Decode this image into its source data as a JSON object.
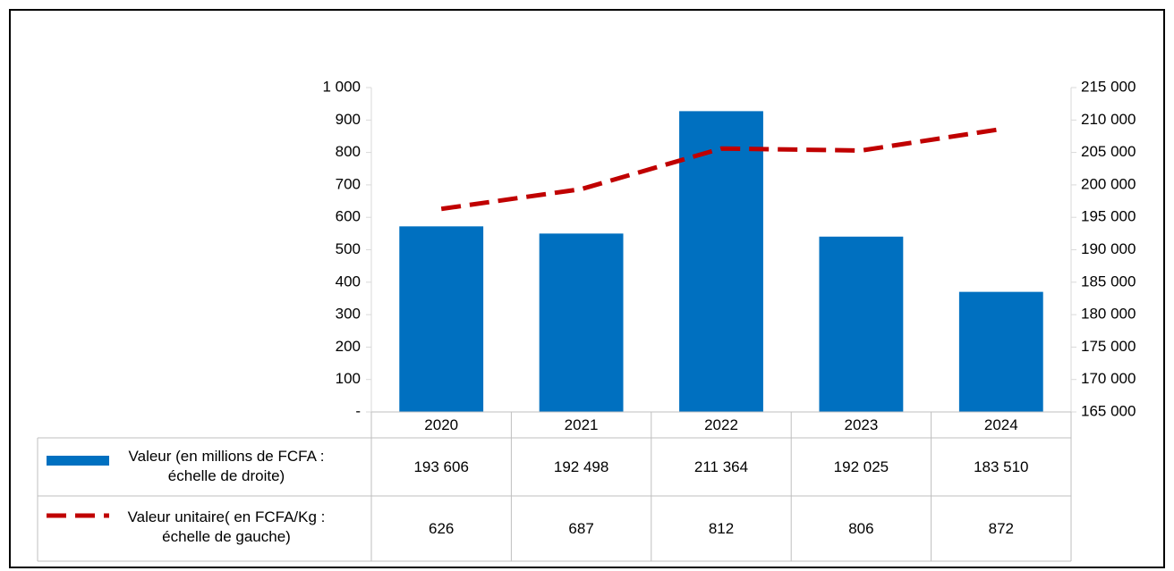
{
  "chart_data": {
    "type": "bar-line",
    "categories": [
      "2020",
      "2021",
      "2022",
      "2023",
      "2024"
    ],
    "series": [
      {
        "name": "Valeur (en millions de FCFA : échelle de droite)",
        "color": "#0070c0",
        "type": "bar",
        "axis": "y2",
        "values": [
          193606,
          192498,
          211364,
          192025,
          183510
        ],
        "value_labels": [
          "193 606",
          "192 498",
          "211 364",
          "192 025",
          "183 510"
        ]
      },
      {
        "name": "Valeur unitaire( en FCFA/Kg : échelle de gauche)",
        "color": "#c00000",
        "type": "line",
        "axis": "y",
        "values": [
          626,
          687,
          812,
          806,
          872
        ]
      }
    ],
    "ylim": [
      0,
      1000
    ],
    "yticks": [
      {
        "value": 0,
        "label": "-"
      },
      100,
      200,
      300,
      400,
      500,
      600,
      700,
      800,
      900,
      {
        "value": 1000,
        "label": "1 000"
      }
    ],
    "y2lim": [
      165000,
      215000
    ],
    "y2ticks": [
      {
        "value": 165000,
        "label": "165 000"
      },
      {
        "value": 170000,
        "label": "170 000"
      },
      {
        "value": 175000,
        "label": "175 000"
      },
      {
        "value": 180000,
        "label": "180 000"
      },
      {
        "value": 185000,
        "label": "185 000"
      },
      {
        "value": 190000,
        "label": "190 000"
      },
      {
        "value": 195000,
        "label": "195 000"
      },
      {
        "value": 200000,
        "label": "200 000"
      },
      {
        "value": 205000,
        "label": "205 000"
      },
      {
        "value": 210000,
        "label": "210 000"
      },
      {
        "value": 215000,
        "label": "215 000"
      }
    ],
    "grid": false,
    "data_table": true
  }
}
